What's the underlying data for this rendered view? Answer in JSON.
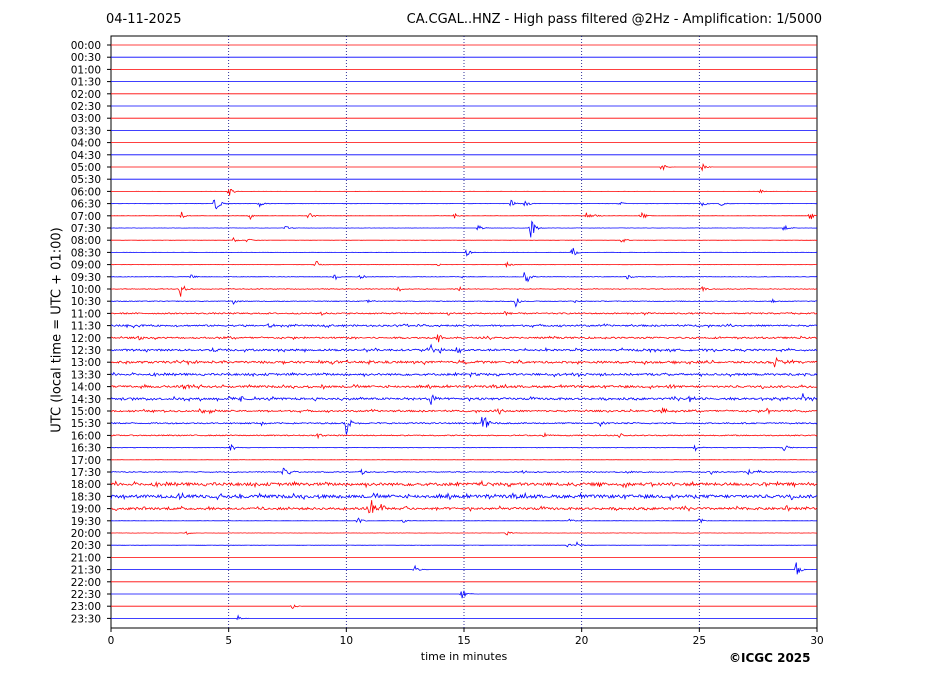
{
  "header": {
    "date": "04-11-2025",
    "title": "CA.CGAL..HNZ - High pass filtered @2Hz - Amplification: 1/5000"
  },
  "footer": {
    "copyright": "©ICGC 2025"
  },
  "colors": {
    "trace_a": "#ff0000",
    "trace_b": "#0000ff",
    "grid": "#000080",
    "axis": "#000000"
  },
  "chart_data": {
    "type": "line",
    "title": "CA.CGAL..HNZ - High pass filtered @2Hz - Amplification: 1/5000",
    "xlabel": "time in minutes",
    "ylabel": "UTC (local time = UTC + 01:00)",
    "xlim": [
      0,
      30
    ],
    "x_ticks": [
      0,
      5,
      10,
      15,
      20,
      25,
      30
    ],
    "vertical_grid": [
      5,
      10,
      15,
      20,
      25
    ],
    "grid_style": "dotted",
    "row_labels": [
      "00:00",
      "00:30",
      "01:00",
      "01:30",
      "02:00",
      "02:30",
      "03:00",
      "03:30",
      "04:00",
      "04:30",
      "05:00",
      "05:30",
      "06:00",
      "06:30",
      "07:00",
      "07:30",
      "08:00",
      "08:30",
      "09:00",
      "09:30",
      "10:00",
      "10:30",
      "11:00",
      "11:30",
      "12:00",
      "12:30",
      "13:00",
      "13:30",
      "14:00",
      "14:30",
      "15:00",
      "15:30",
      "16:00",
      "16:30",
      "17:00",
      "17:30",
      "18:00",
      "18:30",
      "19:00",
      "19:30",
      "20:00",
      "20:30",
      "21:00",
      "21:30",
      "22:00",
      "22:30",
      "23:00",
      "23:30"
    ],
    "row_noise": [
      0,
      0,
      0,
      0,
      0,
      0,
      0,
      0,
      0,
      0,
      0,
      0,
      0.03,
      0.05,
      0.05,
      0.05,
      0.05,
      0.05,
      0.05,
      0.1,
      0.15,
      0.15,
      0.3,
      0.35,
      0.35,
      0.4,
      0.45,
      0.45,
      0.45,
      0.45,
      0.35,
      0.3,
      0.25,
      0.1,
      0.05,
      0.2,
      0.65,
      0.7,
      0.5,
      0.05,
      0.05,
      0.05,
      0,
      0,
      0,
      0,
      0,
      0
    ],
    "events": [
      {
        "row": "05:00",
        "t": 23.4,
        "amp": 0.6
      },
      {
        "row": "05:00",
        "t": 25.1,
        "amp": 0.6
      },
      {
        "row": "06:00",
        "t": 5.0,
        "amp": 0.9
      },
      {
        "row": "06:00",
        "t": 27.6,
        "amp": 0.3
      },
      {
        "row": "06:30",
        "t": 4.4,
        "amp": 1.8
      },
      {
        "row": "06:30",
        "t": 6.3,
        "amp": 0.6
      },
      {
        "row": "06:30",
        "t": 17.0,
        "amp": 0.6
      },
      {
        "row": "06:30",
        "t": 17.6,
        "amp": 0.6
      },
      {
        "row": "06:30",
        "t": 21.6,
        "amp": 0.4
      },
      {
        "row": "06:30",
        "t": 25.1,
        "amp": 0.5
      },
      {
        "row": "06:30",
        "t": 25.9,
        "amp": 0.7
      },
      {
        "row": "07:00",
        "t": 3.0,
        "amp": 0.6
      },
      {
        "row": "07:00",
        "t": 5.9,
        "amp": 0.6
      },
      {
        "row": "07:00",
        "t": 8.4,
        "amp": 0.8
      },
      {
        "row": "07:00",
        "t": 14.6,
        "amp": 0.4
      },
      {
        "row": "07:00",
        "t": 20.2,
        "amp": 0.6
      },
      {
        "row": "07:00",
        "t": 20.6,
        "amp": 0.4
      },
      {
        "row": "07:00",
        "t": 22.5,
        "amp": 1.0
      },
      {
        "row": "07:00",
        "t": 29.7,
        "amp": 0.8
      },
      {
        "row": "07:30",
        "t": 7.4,
        "amp": 0.5
      },
      {
        "row": "07:30",
        "t": 15.6,
        "amp": 0.6
      },
      {
        "row": "07:30",
        "t": 17.8,
        "amp": 2.2
      },
      {
        "row": "07:30",
        "t": 28.6,
        "amp": 0.5
      },
      {
        "row": "08:00",
        "t": 5.2,
        "amp": 0.5
      },
      {
        "row": "08:00",
        "t": 5.8,
        "amp": 0.4
      },
      {
        "row": "08:00",
        "t": 21.7,
        "amp": 0.5
      },
      {
        "row": "08:30",
        "t": 15.1,
        "amp": 0.6
      },
      {
        "row": "08:30",
        "t": 19.6,
        "amp": 0.9
      },
      {
        "row": "09:00",
        "t": 8.7,
        "amp": 0.7
      },
      {
        "row": "09:00",
        "t": 16.8,
        "amp": 0.6
      },
      {
        "row": "09:00",
        "t": 13.9,
        "amp": 0.2
      },
      {
        "row": "09:30",
        "t": 3.4,
        "amp": 0.4
      },
      {
        "row": "09:30",
        "t": 9.5,
        "amp": 0.5
      },
      {
        "row": "09:30",
        "t": 10.6,
        "amp": 0.4
      },
      {
        "row": "09:30",
        "t": 14.9,
        "amp": 0.3
      },
      {
        "row": "09:30",
        "t": 17.6,
        "amp": 1.6
      },
      {
        "row": "09:30",
        "t": 21.9,
        "amp": 0.5
      },
      {
        "row": "10:00",
        "t": 2.95,
        "amp": 1.3
      },
      {
        "row": "10:00",
        "t": 12.2,
        "amp": 0.4
      },
      {
        "row": "10:00",
        "t": 14.8,
        "amp": 0.4
      },
      {
        "row": "10:00",
        "t": 25.1,
        "amp": 0.4
      },
      {
        "row": "10:30",
        "t": 5.2,
        "amp": 0.5
      },
      {
        "row": "10:30",
        "t": 10.9,
        "amp": 0.5
      },
      {
        "row": "10:30",
        "t": 17.2,
        "amp": 0.8
      },
      {
        "row": "10:30",
        "t": 19.7,
        "amp": 0.2
      },
      {
        "row": "10:30",
        "t": 28.1,
        "amp": 0.4
      },
      {
        "row": "11:00",
        "t": 8.9,
        "amp": 0.5
      },
      {
        "row": "11:00",
        "t": 14.3,
        "amp": 0.5
      },
      {
        "row": "11:00",
        "t": 16.7,
        "amp": 0.5
      },
      {
        "row": "11:00",
        "t": 22.6,
        "amp": 0.4
      },
      {
        "row": "11:00",
        "t": 28.8,
        "amp": 0.4
      },
      {
        "row": "11:30",
        "t": 1.0,
        "amp": 0.5
      },
      {
        "row": "11:30",
        "t": 6.7,
        "amp": 0.5
      },
      {
        "row": "11:30",
        "t": 12.6,
        "amp": 0.3
      },
      {
        "row": "12:00",
        "t": 1.1,
        "amp": 0.6
      },
      {
        "row": "12:00",
        "t": 13.9,
        "amp": 0.8
      },
      {
        "row": "12:30",
        "t": 4.3,
        "amp": 0.5
      },
      {
        "row": "12:30",
        "t": 13.6,
        "amp": 0.7
      },
      {
        "row": "12:30",
        "t": 14.0,
        "amp": 0.5
      },
      {
        "row": "12:30",
        "t": 14.7,
        "amp": 0.5
      },
      {
        "row": "13:00",
        "t": 4.8,
        "amp": 0.5
      },
      {
        "row": "13:00",
        "t": 15.5,
        "amp": 0.4
      },
      {
        "row": "13:00",
        "t": 28.2,
        "amp": 0.7
      },
      {
        "row": "13:30",
        "t": 15.3,
        "amp": 0.5
      },
      {
        "row": "13:30",
        "t": 18.8,
        "amp": 0.4
      },
      {
        "row": "14:00",
        "t": 3.1,
        "amp": 0.6
      },
      {
        "row": "14:00",
        "t": 8.5,
        "amp": 0.4
      },
      {
        "row": "14:00",
        "t": 23.7,
        "amp": 0.4
      },
      {
        "row": "14:30",
        "t": 5.0,
        "amp": 0.5
      },
      {
        "row": "14:30",
        "t": 5.5,
        "amp": 0.4
      },
      {
        "row": "14:30",
        "t": 13.6,
        "amp": 1.4
      },
      {
        "row": "14:30",
        "t": 15.5,
        "amp": 0.4
      },
      {
        "row": "14:30",
        "t": 24.6,
        "amp": 0.6
      },
      {
        "row": "14:30",
        "t": 26.2,
        "amp": 0.3
      },
      {
        "row": "14:30",
        "t": 29.4,
        "amp": 0.5
      },
      {
        "row": "15:00",
        "t": 3.8,
        "amp": 0.4
      },
      {
        "row": "15:00",
        "t": 4.2,
        "amp": 0.5
      },
      {
        "row": "15:00",
        "t": 16.5,
        "amp": 0.5
      },
      {
        "row": "15:00",
        "t": 23.4,
        "amp": 0.6
      },
      {
        "row": "15:00",
        "t": 27.9,
        "amp": 0.6
      },
      {
        "row": "15:00",
        "t": 29.1,
        "amp": 0.4
      },
      {
        "row": "15:30",
        "t": 6.4,
        "amp": 0.4
      },
      {
        "row": "15:30",
        "t": 10.0,
        "amp": 1.6
      },
      {
        "row": "15:30",
        "t": 15.8,
        "amp": 1.8
      },
      {
        "row": "15:30",
        "t": 20.8,
        "amp": 0.6
      },
      {
        "row": "16:00",
        "t": 8.8,
        "amp": 0.6
      },
      {
        "row": "16:00",
        "t": 18.4,
        "amp": 0.5
      },
      {
        "row": "16:00",
        "t": 21.6,
        "amp": 0.5
      },
      {
        "row": "16:30",
        "t": 5.1,
        "amp": 0.6
      },
      {
        "row": "16:30",
        "t": 24.8,
        "amp": 0.6
      },
      {
        "row": "16:30",
        "t": 28.6,
        "amp": 0.6
      },
      {
        "row": "17:30",
        "t": 7.3,
        "amp": 0.9
      },
      {
        "row": "17:30",
        "t": 7.6,
        "amp": 0.6
      },
      {
        "row": "17:30",
        "t": 10.6,
        "amp": 0.6
      },
      {
        "row": "17:30",
        "t": 17.5,
        "amp": 0.3
      },
      {
        "row": "17:30",
        "t": 21.9,
        "amp": 0.3
      },
      {
        "row": "17:30",
        "t": 25.5,
        "amp": 0.4
      },
      {
        "row": "17:30",
        "t": 27.1,
        "amp": 0.5
      },
      {
        "row": "17:30",
        "t": 27.5,
        "amp": 0.4
      },
      {
        "row": "18:30",
        "t": 5.4,
        "amp": 0.5
      },
      {
        "row": "18:30",
        "t": 3.0,
        "amp": 0.4
      },
      {
        "row": "19:00",
        "t": 0.2,
        "amp": 0.3
      },
      {
        "row": "19:00",
        "t": 10.9,
        "amp": 1.0
      },
      {
        "row": "19:00",
        "t": 11.1,
        "amp": 1.6
      },
      {
        "row": "19:00",
        "t": 11.5,
        "amp": 0.8
      },
      {
        "row": "19:00",
        "t": 12.5,
        "amp": 0.6
      },
      {
        "row": "19:00",
        "t": 6.3,
        "amp": 0.4
      },
      {
        "row": "19:00",
        "t": 28.7,
        "amp": 0.5
      },
      {
        "row": "19:30",
        "t": 10.5,
        "amp": 0.7
      },
      {
        "row": "19:30",
        "t": 12.4,
        "amp": 0.3
      },
      {
        "row": "19:30",
        "t": 19.5,
        "amp": 0.4
      },
      {
        "row": "19:30",
        "t": 25.0,
        "amp": 0.5
      },
      {
        "row": "20:00",
        "t": 3.2,
        "amp": 0.3
      },
      {
        "row": "20:00",
        "t": 16.8,
        "amp": 0.5
      },
      {
        "row": "20:30",
        "t": 19.4,
        "amp": 0.3
      },
      {
        "row": "20:30",
        "t": 19.8,
        "amp": 0.5
      },
      {
        "row": "21:30",
        "t": 12.9,
        "amp": 1.0
      },
      {
        "row": "21:30",
        "t": 29.1,
        "amp": 1.2
      },
      {
        "row": "22:30",
        "t": 14.9,
        "amp": 1.1
      },
      {
        "row": "23:00",
        "t": 7.7,
        "amp": 0.4
      },
      {
        "row": "23:30",
        "t": 5.4,
        "amp": 0.4
      }
    ]
  }
}
